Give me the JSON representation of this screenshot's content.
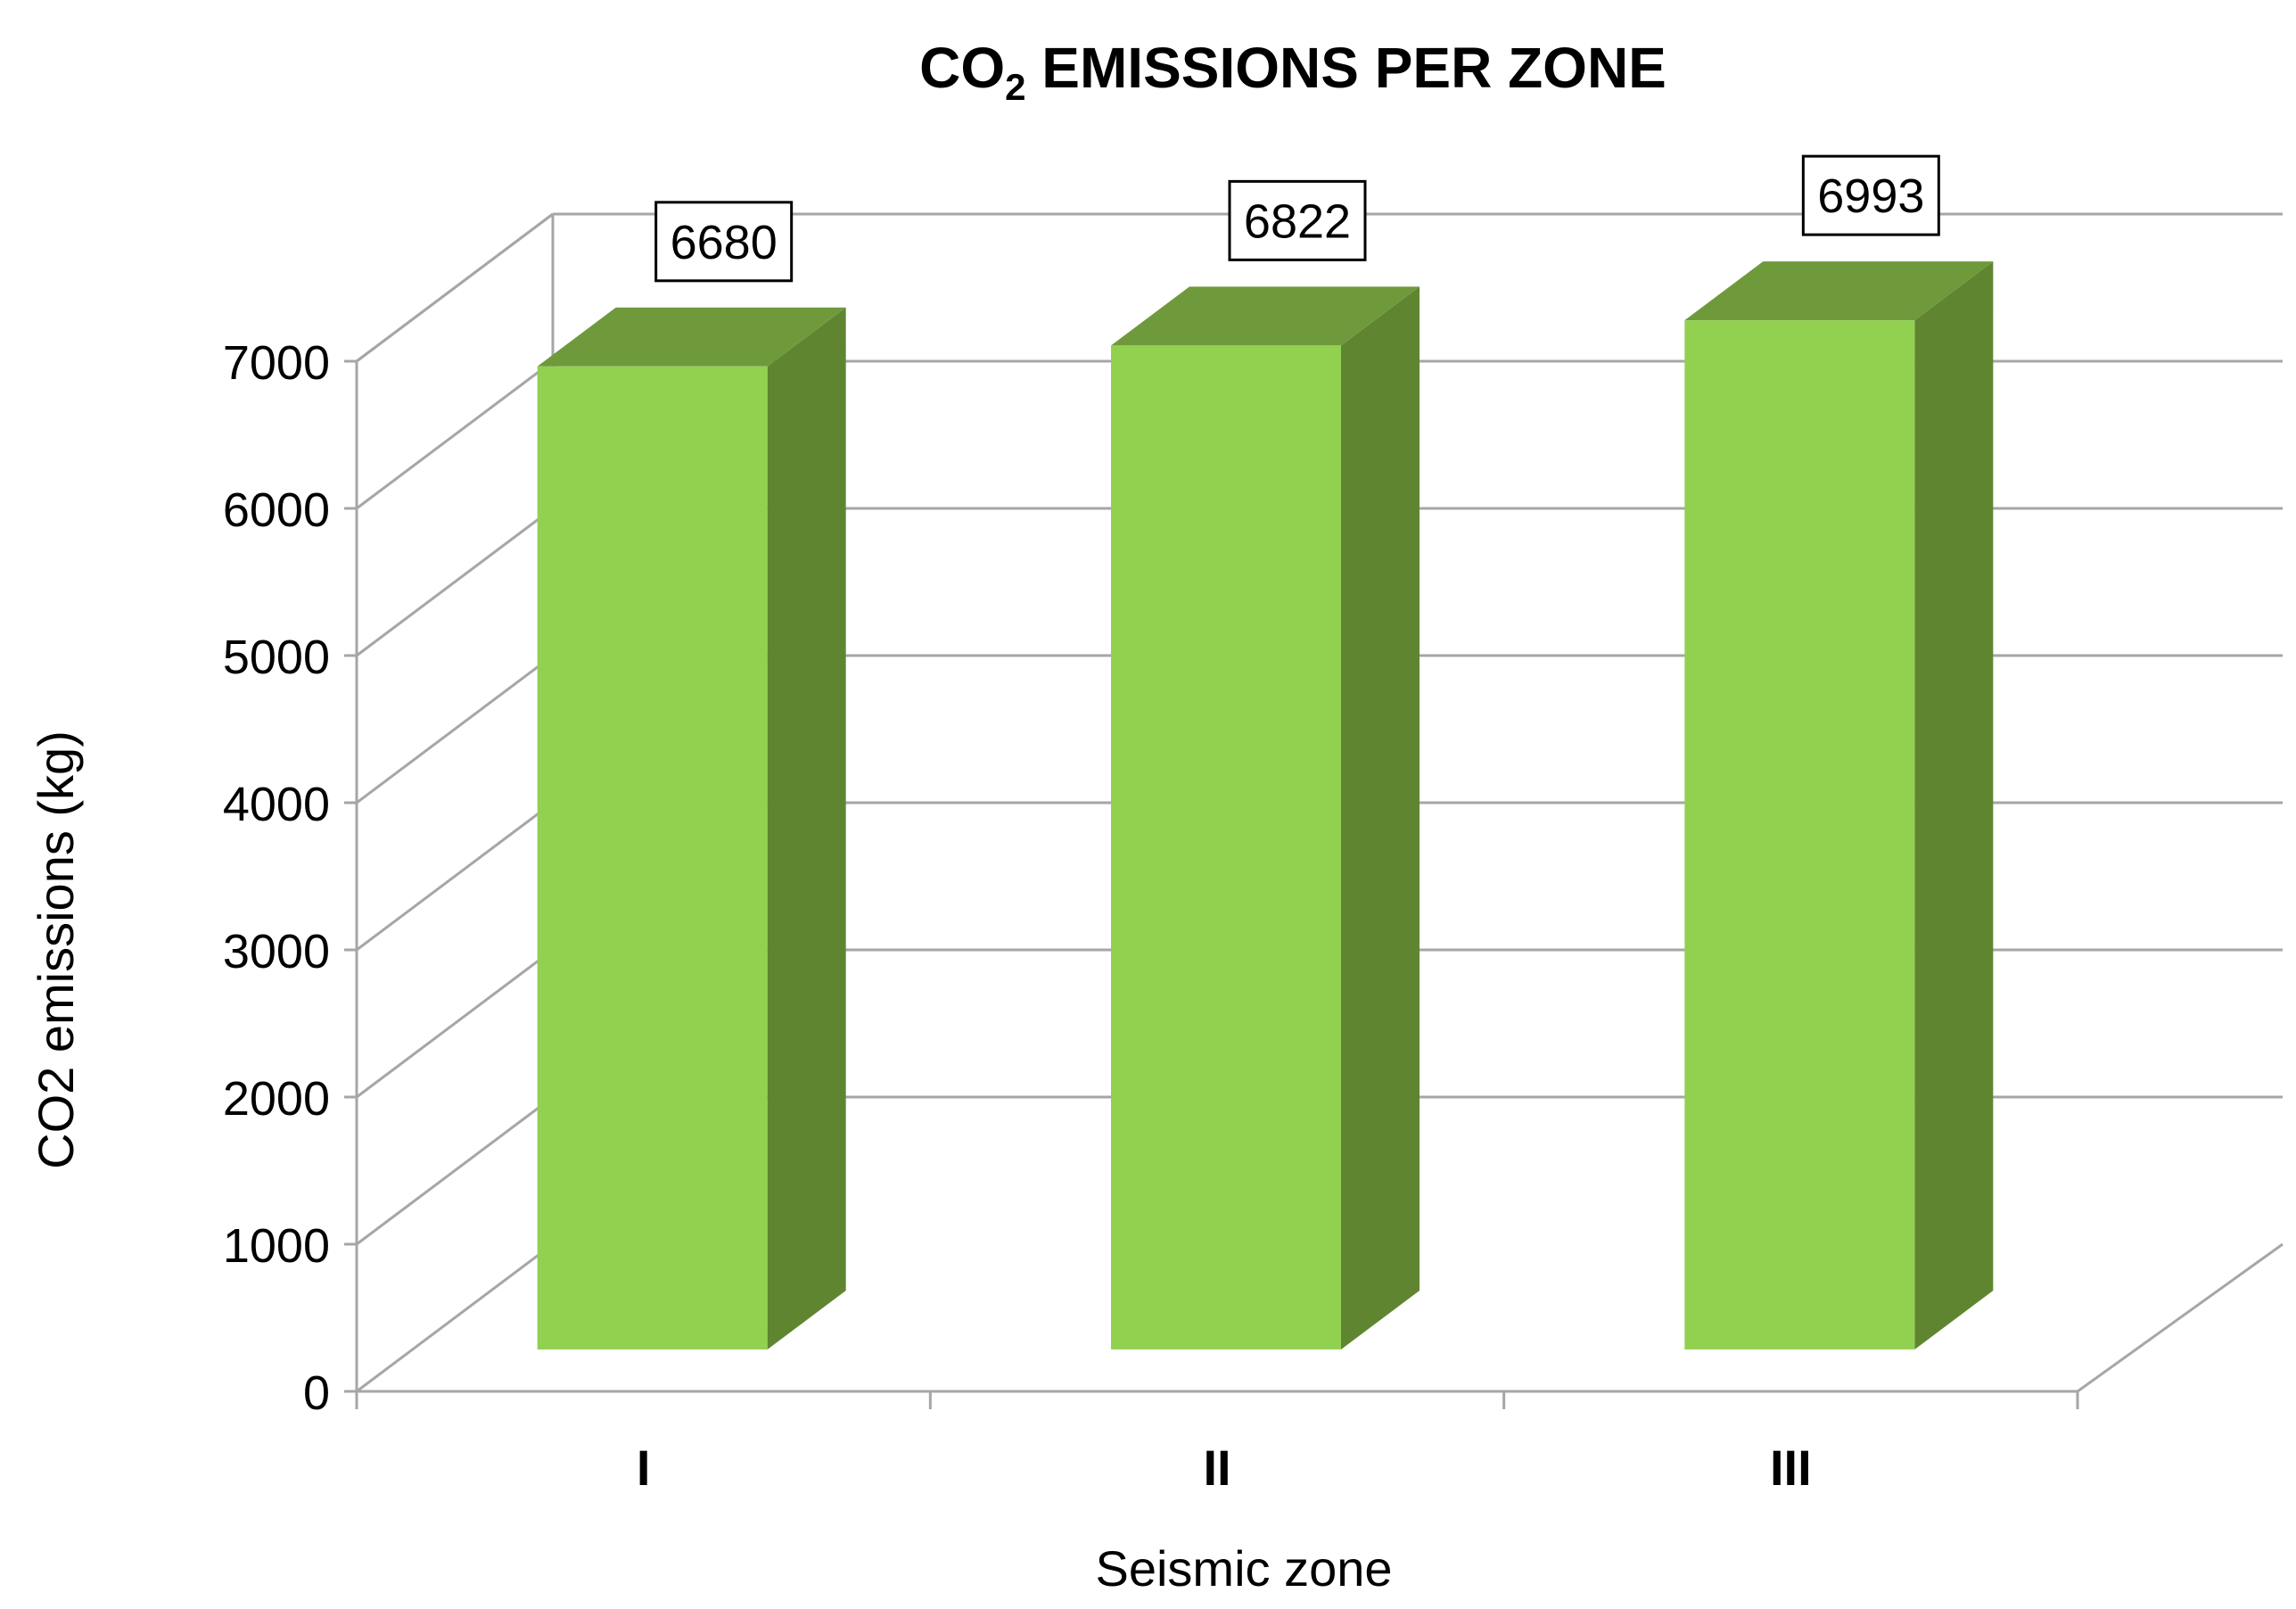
{
  "chart_data": {
    "type": "bar",
    "style": "3d-column",
    "title_main": "CO",
    "title_subscript": "2",
    "title_rest": " EMISSIONS PER ZONE",
    "xlabel": "Seismic zone",
    "ylabel": "CO2 emissions (kg)",
    "categories": [
      "I",
      "II",
      "III"
    ],
    "values": [
      6680,
      6822,
      6993
    ],
    "data_labels": [
      "6680",
      "6822",
      "6993"
    ],
    "ylim": [
      0,
      7000
    ],
    "yticks": [
      0,
      1000,
      2000,
      3000,
      4000,
      5000,
      6000,
      7000
    ],
    "ytick_labels": [
      "0",
      "1000",
      "2000",
      "3000",
      "4000",
      "5000",
      "6000",
      "7000"
    ],
    "grid": true,
    "legend": "none"
  },
  "colors": {
    "bar_front": "#92d050",
    "bar_side": "#5f8531",
    "bar_top": "#6f9a3c",
    "gridline": "#a6a6a6",
    "text": "#000000"
  }
}
